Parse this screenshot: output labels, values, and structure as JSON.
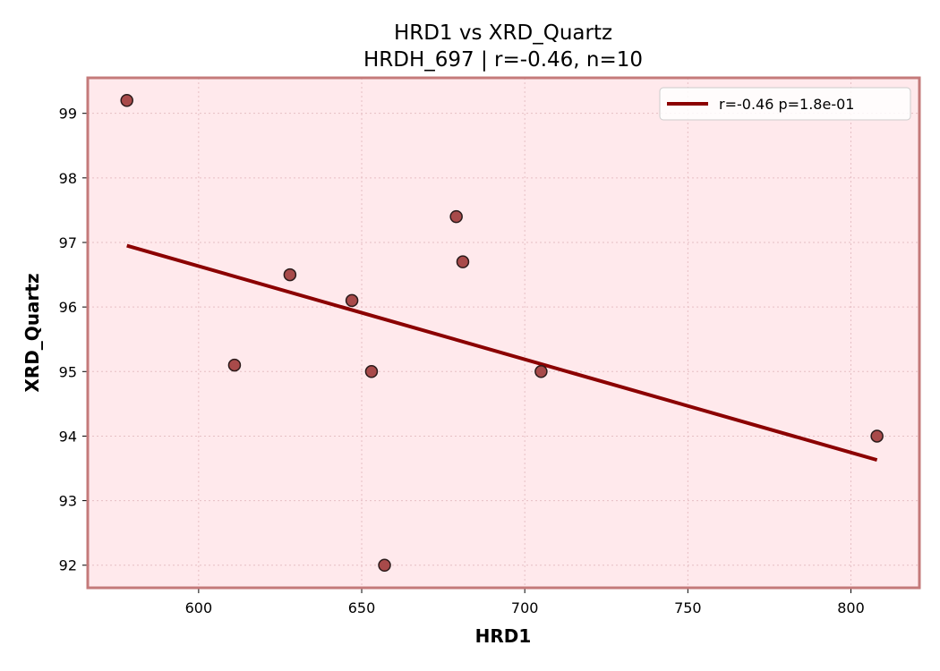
{
  "chart_data": {
    "type": "scatter",
    "title": "HRD1 vs XRD_Quartz",
    "subtitle": "HRDH_697 | r=-0.46, n=10",
    "xlabel": "HRD1",
    "ylabel": "XRD_Quartz",
    "xlim": [
      566,
      821
    ],
    "ylim": [
      91.65,
      99.55
    ],
    "xticks": [
      600,
      650,
      700,
      750,
      800
    ],
    "yticks": [
      92,
      93,
      94,
      95,
      96,
      97,
      98,
      99
    ],
    "grid": true,
    "legend_position": "top-right",
    "points": [
      {
        "x": 578,
        "y": 99.2
      },
      {
        "x": 611,
        "y": 95.1
      },
      {
        "x": 628,
        "y": 96.5
      },
      {
        "x": 647,
        "y": 96.1
      },
      {
        "x": 653,
        "y": 95.0
      },
      {
        "x": 657,
        "y": 92.0
      },
      {
        "x": 679,
        "y": 97.4
      },
      {
        "x": 681,
        "y": 96.7
      },
      {
        "x": 705,
        "y": 95.0
      },
      {
        "x": 808,
        "y": 94.0
      }
    ],
    "fit_line": {
      "label": "r=-0.46  p=1.8e-01",
      "x": [
        578,
        808
      ],
      "y": [
        96.95,
        93.63
      ]
    },
    "colors": {
      "background": "#ffe9ec",
      "frame": "#c47a7a",
      "point_fill": "#a84a4a",
      "point_edge": "#2a1a1a",
      "line": "#8b0000",
      "grid": "#e6bfc4"
    }
  }
}
